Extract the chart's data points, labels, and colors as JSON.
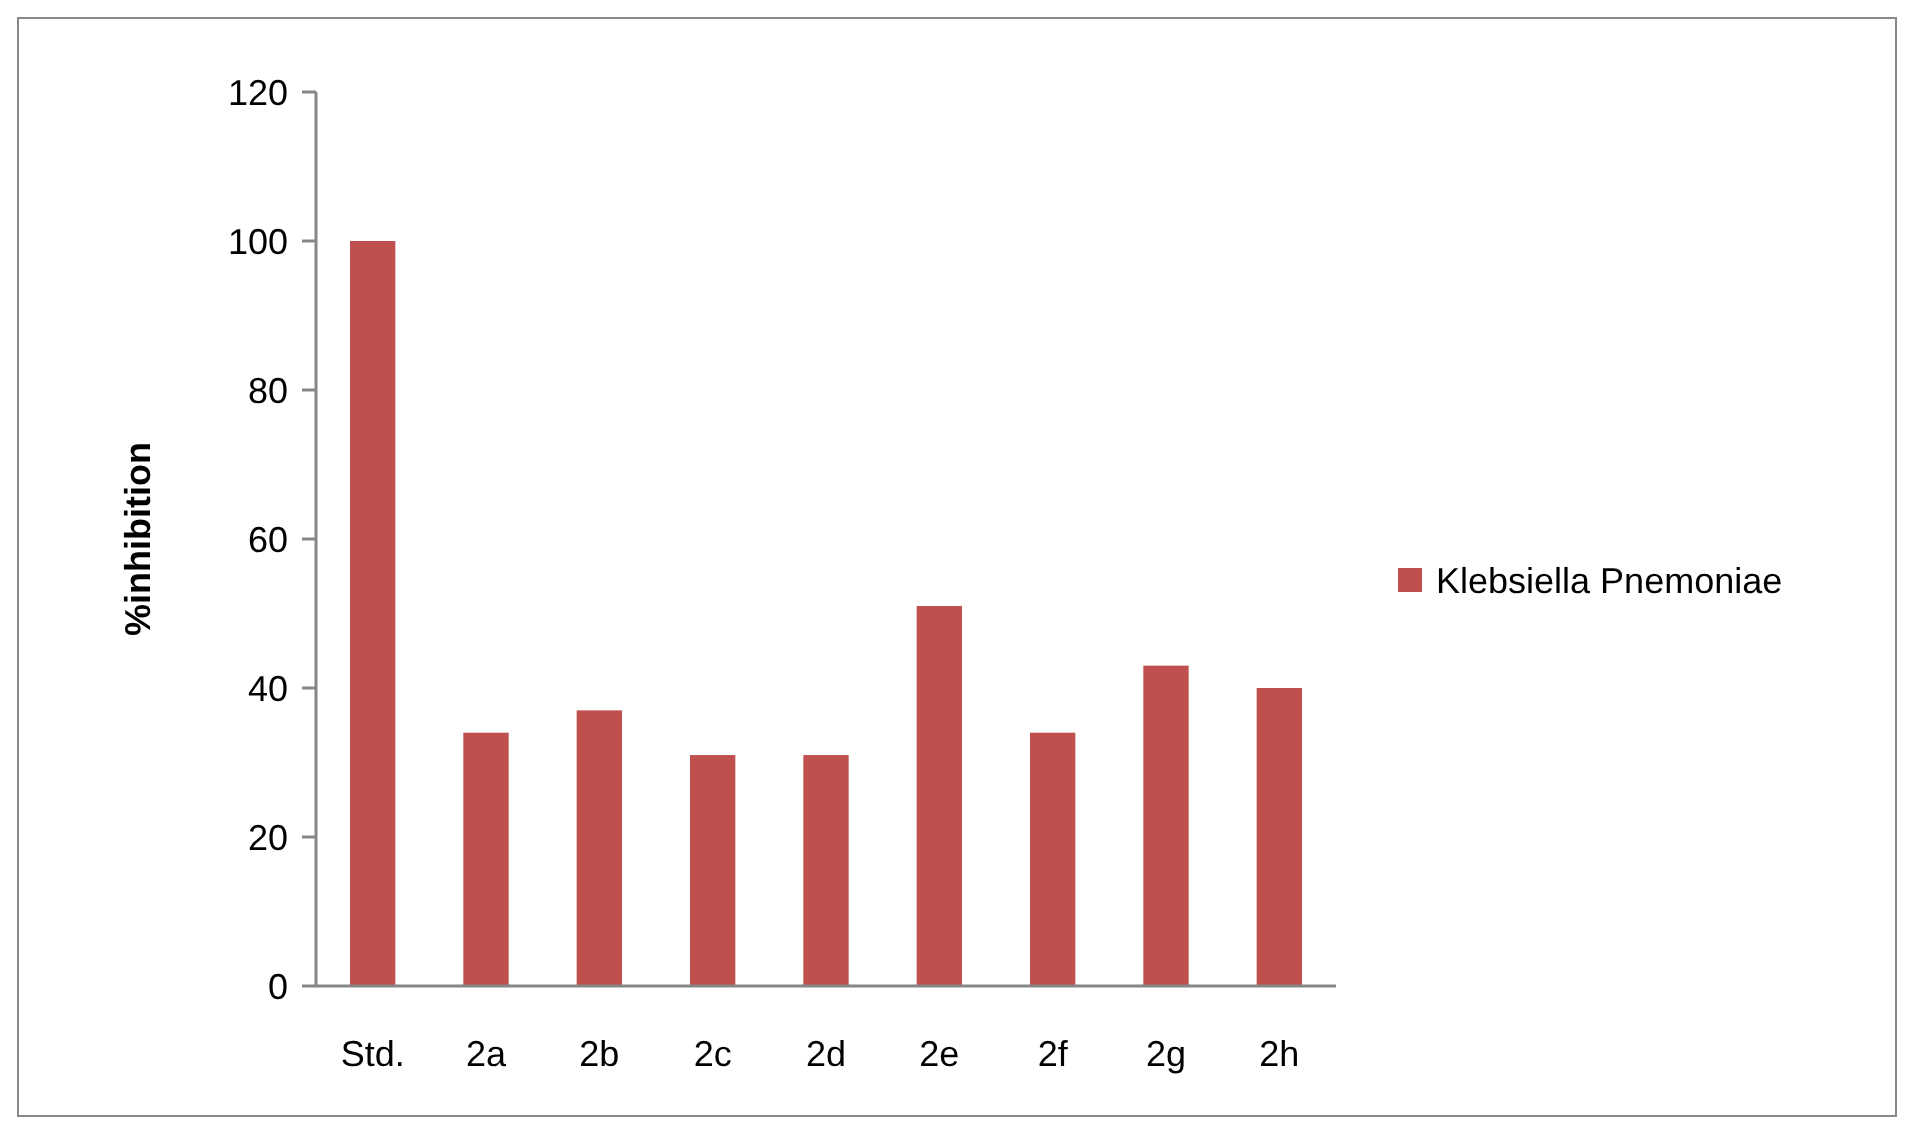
{
  "chart_data": {
    "type": "bar",
    "ylabel": "%inhibition",
    "categories": [
      "Std.",
      "2a",
      "2b",
      "2c",
      "2d",
      "2e",
      "2f",
      "2g",
      "2h"
    ],
    "series": [
      {
        "name": "Klebsiella Pnemoniae",
        "color": "#c0504d",
        "values": [
          100,
          34,
          37,
          31,
          31,
          51,
          34,
          43,
          40
        ]
      }
    ],
    "ylim": [
      0,
      120
    ],
    "yticks": [
      0,
      20,
      40,
      60,
      80,
      100,
      120
    ],
    "grid": false,
    "legend": "right"
  }
}
